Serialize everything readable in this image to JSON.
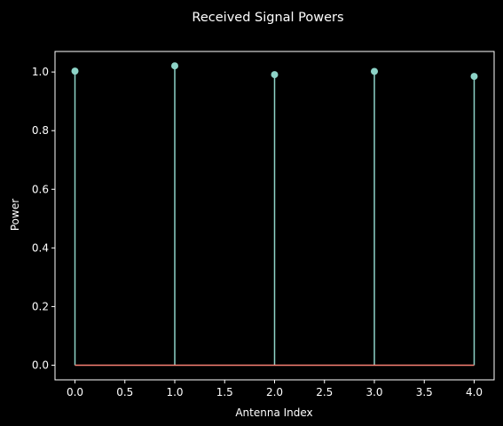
{
  "chart_data": {
    "type": "stem",
    "title": "Received Signal Powers",
    "xlabel": "Antenna Index",
    "ylabel": "Power",
    "x": [
      0,
      1,
      2,
      3,
      4
    ],
    "values": [
      1.003,
      1.021,
      0.991,
      1.002,
      0.985
    ],
    "xlim": [
      -0.2,
      4.2
    ],
    "ylim": [
      -0.05,
      1.07
    ],
    "xticks": [
      0.0,
      0.5,
      1.0,
      1.5,
      2.0,
      2.5,
      3.0,
      3.5,
      4.0
    ],
    "xtick_labels": [
      "0.0",
      "0.5",
      "1.0",
      "1.5",
      "2.0",
      "2.5",
      "3.0",
      "3.5",
      "4.0"
    ],
    "yticks": [
      0.0,
      0.2,
      0.4,
      0.6,
      0.8,
      1.0
    ],
    "ytick_labels": [
      "0.0",
      "0.2",
      "0.4",
      "0.6",
      "0.8",
      "1.0"
    ],
    "baseline": 0,
    "grid": false,
    "colors": {
      "background": "#000000",
      "axes": "#ffffff",
      "stem": "#8dd3c7",
      "baseline": "#fa8174"
    }
  }
}
